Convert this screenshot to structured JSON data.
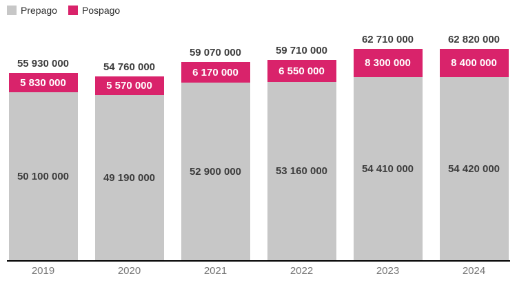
{
  "legend": {
    "items": [
      {
        "label": "Prepago",
        "color": "#C7C7C7"
      },
      {
        "label": "Pospago",
        "color": "#D9236B"
      }
    ]
  },
  "colors": {
    "prepago_bar": "#C7C7C7",
    "pospago_bar": "#D9236B",
    "value_text": "#3C3C3C",
    "segment_text": "#FFFFFF",
    "year_text": "#757575",
    "axis_line": "#000000"
  },
  "chart_data": {
    "type": "bar",
    "stacked": true,
    "grid": false,
    "legend_position": "top-left",
    "categories": [
      "2019",
      "2020",
      "2021",
      "2022",
      "2023",
      "2024"
    ],
    "series": [
      {
        "name": "Prepago",
        "color": "#C7C7C7",
        "values": [
          50100000,
          49190000,
          52900000,
          53160000,
          54410000,
          54420000
        ],
        "labels": [
          "50 100 000",
          "49 190 000",
          "52 900 000",
          "53 160 000",
          "54 410 000",
          "54 420 000"
        ]
      },
      {
        "name": "Pospago",
        "color": "#D9236B",
        "values": [
          5830000,
          5570000,
          6170000,
          6550000,
          8300000,
          8400000
        ],
        "labels": [
          "5 830 000",
          "5 570 000",
          "6 170 000",
          "6 550 000",
          "8 300 000",
          "8 400 000"
        ]
      }
    ],
    "totals": [
      55930000,
      54760000,
      59070000,
      59710000,
      62710000,
      62820000
    ],
    "total_labels": [
      "55 930 000",
      "54 760 000",
      "59 070 000",
      "59 710 000",
      "62 710 000",
      "62 820 000"
    ],
    "ylim": [
      0,
      65000000
    ]
  }
}
